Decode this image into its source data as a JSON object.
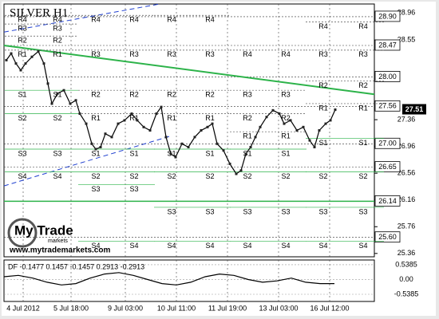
{
  "chart_data": {
    "type": "line",
    "title": "SILVER H1",
    "xlim": [
      0,
      232
    ],
    "xticks": [
      {
        "value": 12,
        "label": "4 Jul 2012"
      },
      {
        "value": 42,
        "label": "5 Jul 18:00"
      },
      {
        "value": 76,
        "label": "9 Jul 03:00"
      },
      {
        "value": 108,
        "label": "10 Jul 11:00"
      },
      {
        "value": 140,
        "label": "11 Jul 19:00"
      },
      {
        "value": 172,
        "label": "13 Jul 03:00"
      },
      {
        "value": 204,
        "label": "16 Jul 12:00"
      }
    ],
    "ylim": [
      25.31,
      29.09
    ],
    "yticks": [
      28.96,
      28.55,
      27.36,
      26.96,
      26.56,
      26.16,
      25.76,
      25.36
    ],
    "grid": true,
    "series": [
      {
        "color": "#000000",
        "x": [
          1.5,
          4.5,
          7.5,
          10.5,
          13.5,
          17.5,
          21.5,
          25,
          27.5,
          30,
          33.5,
          37.5,
          41.5,
          45,
          47.5,
          51.5,
          55,
          57.5,
          60.5,
          63.5,
          67.5,
          71.5,
          75.5,
          80,
          83.5,
          87.5,
          91.5,
          95.5,
          98.5,
          101.5,
          104.5,
          107.5,
          111.5,
          115.5,
          119.5,
          123.5,
          127.5,
          130.5,
          133.5,
          137.5,
          141.5,
          145.5,
          148.5,
          151.5,
          154.5,
          157.5,
          160.5,
          164.5,
          168.5,
          172.5,
          175.5,
          179.5,
          183.5,
          187.5,
          191.5,
          194.5,
          197.5,
          201.5,
          204.5,
          207.5
        ],
        "values": [
          28.25,
          28.35,
          28.2,
          28.1,
          28.2,
          28.3,
          28.38,
          28.2,
          27.9,
          27.6,
          27.75,
          27.8,
          27.6,
          27.65,
          27.45,
          27.3,
          27.0,
          26.92,
          26.95,
          27.15,
          27.1,
          27.3,
          27.35,
          27.45,
          27.35,
          27.25,
          27.2,
          27.45,
          27.55,
          27.1,
          26.85,
          26.8,
          27.0,
          26.95,
          27.1,
          27.2,
          27.25,
          27.3,
          27.0,
          26.9,
          26.7,
          26.55,
          26.6,
          26.85,
          26.95,
          27.1,
          27.25,
          27.4,
          27.5,
          27.45,
          27.3,
          27.35,
          27.2,
          27.25,
          27.05,
          26.95,
          27.2,
          27.3,
          27.35,
          27.51
        ]
      }
    ],
    "current": {
      "value": 27.51,
      "label": "27.51"
    },
    "levels": [
      {
        "value": 28.9,
        "label": "28.90"
      },
      {
        "value": 28.47,
        "label": "28.47"
      },
      {
        "value": 28.0,
        "label": "28.00"
      },
      {
        "value": 27.56,
        "label": "27.56"
      },
      {
        "value": 27.0,
        "label": "27.00"
      },
      {
        "value": 26.65,
        "label": "26.65"
      },
      {
        "value": 26.14,
        "label": "26.14",
        "color": "#2db34a"
      },
      {
        "value": 25.6,
        "label": "25.60"
      }
    ],
    "trendlines": [
      {
        "color": "#2db34a",
        "x": [
          0,
          232
        ],
        "values": [
          28.47,
          27.74
        ]
      },
      {
        "color": "#2040d0",
        "x": [
          0,
          97.5
        ],
        "values": [
          28.67,
          29.09
        ]
      },
      {
        "color": "#2040d0",
        "x": [
          0,
          105
        ],
        "values": [
          26.37,
          27.12
        ]
      }
    ],
    "pivot_labels": [
      "R4",
      "R3",
      "R2",
      "R1",
      "S1",
      "S2",
      "S3",
      "S4"
    ],
    "pivot_sets": [
      {
        "columns": [
          11.5,
          33.5
        ],
        "levels": [
          28.92,
          28.79,
          28.61,
          28.4,
          27.8,
          27.45,
          26.92,
          26.58
        ]
      },
      {
        "columns": [
          57.5,
          81.5
        ],
        "levels": [
          28.92,
          28.4,
          27.8,
          27.45,
          26.92,
          26.58,
          26.39,
          25.54
        ]
      },
      {
        "columns": [
          105,
          129
        ],
        "levels": [
          28.92,
          28.4,
          27.8,
          27.45,
          26.92,
          26.58,
          26.05,
          25.54
        ]
      },
      {
        "columns": [
          152.5,
          176.5
        ],
        "levels": [
          28.4,
          27.8,
          27.45,
          27.18,
          26.92,
          26.58,
          26.05,
          25.54
        ]
      },
      {
        "columns": [
          200,
          225
        ],
        "levels": [
          28.82,
          28.4,
          27.94,
          27.6,
          27.08,
          26.58,
          26.05,
          25.54
        ]
      }
    ],
    "indicator": {
      "label": "DF -0.1477 0.1457 -0.1457 0.2913 -0.2913",
      "ylim": [
        -0.8,
        0.71
      ],
      "yticks": [
        0.5385,
        {
          "value": 0,
          "label": "0.00"
        },
        -0.5385
      ],
      "x": [
        0,
        9,
        18,
        27,
        36,
        45,
        54,
        63,
        72,
        81,
        90,
        99,
        108,
        117,
        126,
        135,
        144,
        153,
        162,
        171,
        180,
        189,
        198,
        207
      ],
      "values": [
        0.1,
        0.15,
        0.05,
        -0.1,
        -0.2,
        -0.15,
        0.05,
        0.2,
        0.25,
        0.15,
        0,
        -0.15,
        -0.2,
        -0.1,
        0.1,
        0.2,
        0.15,
        0,
        -0.1,
        -0.05,
        0.05,
        -0.1,
        -0.15,
        -0.15
      ]
    },
    "watermark": {
      "name": "My Trade",
      "sub": "markets",
      "url": "www.mytrademarkets.com"
    }
  }
}
